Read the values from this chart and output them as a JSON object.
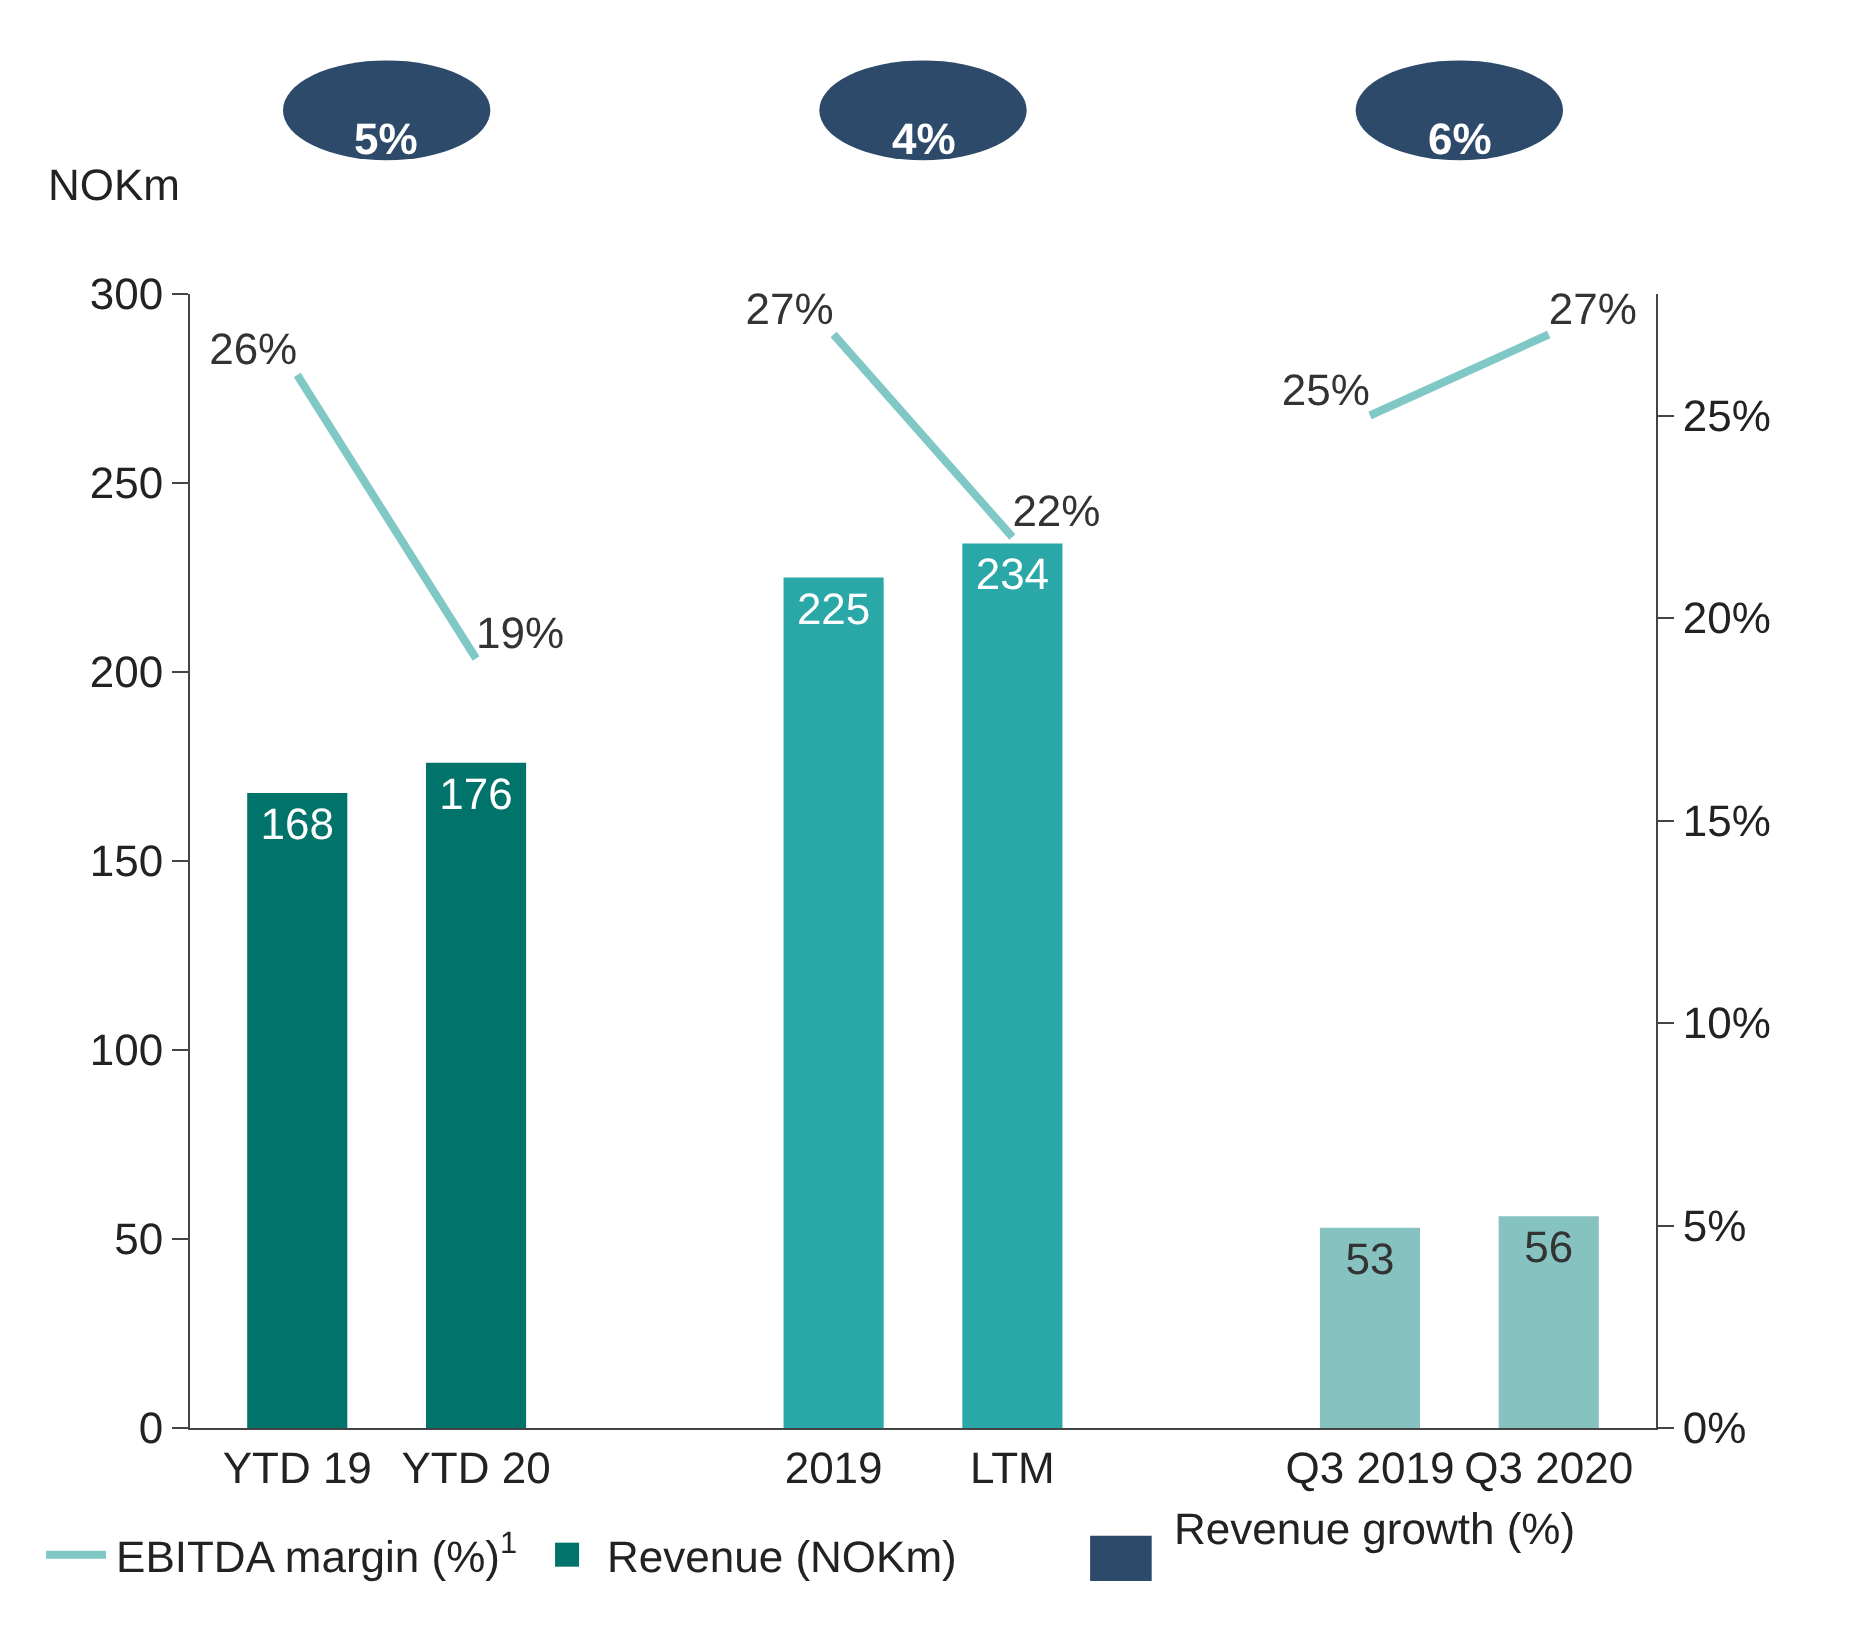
{
  "chart_data": {
    "type": "bar",
    "categories": [
      "YTD 19",
      "YTD 20",
      null,
      "2019",
      "LTM",
      null,
      "Q3 2019",
      "Q3 2020"
    ],
    "ylabel": "NOKm",
    "ylim": [
      0,
      300
    ],
    "yticks": [
      0,
      50,
      100,
      150,
      200,
      250,
      300
    ],
    "y2lim": [
      0,
      28
    ],
    "y2ticks": [
      {
        "value": 0,
        "label": "0%"
      },
      {
        "value": 5,
        "label": "5%"
      },
      {
        "value": 10,
        "label": "10%"
      },
      {
        "value": 15,
        "label": "15%"
      },
      {
        "value": 20,
        "label": "20%"
      },
      {
        "value": 25,
        "label": "25%"
      }
    ],
    "series": [
      {
        "name": "EBITDA margin (%)$^{1}$",
        "type": "line",
        "axis": "y2",
        "color": "#7fc8c5",
        "values": [
          26,
          19,
          null,
          27,
          22,
          null,
          25,
          27
        ],
        "value_labels": [
          "26%",
          "19%",
          null,
          "27%",
          "22%",
          null,
          "25%",
          "27%"
        ]
      },
      {
        "name": "Revenue (NOKm)",
        "color": "#00736b",
        "colors": [
          "#00736b",
          "#00736b",
          null,
          "#2aa8a7",
          "#2aa8a7",
          null,
          "#85c2c0",
          "#85c2c0"
        ],
        "values": [
          168,
          176,
          null,
          225,
          234,
          null,
          53,
          56
        ]
      }
    ],
    "annotations": [
      "5%",
      "4%",
      "6%",
      "Revenue growth (%)"
    ],
    "data_labels": true,
    "grid": false,
    "legend": "bottom"
  }
}
